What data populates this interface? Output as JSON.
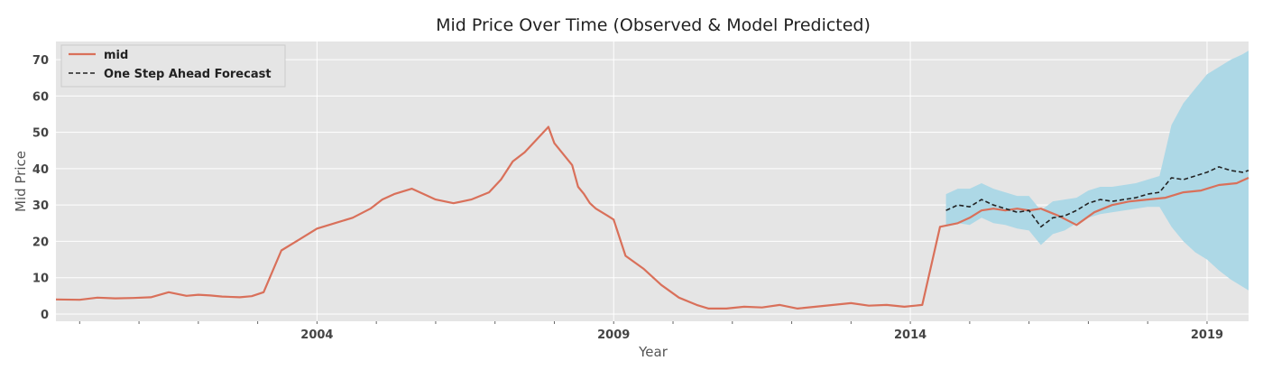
{
  "chart_data": {
    "type": "line",
    "title": "Mid Price Over Time (Observed & Model Predicted)",
    "xlabel": "Year",
    "ylabel": "Mid Price",
    "xlim": [
      1999.6,
      2019.7
    ],
    "ylim": [
      -2,
      75
    ],
    "grid": true,
    "legend_position": "top-left",
    "x_ticks": [
      2004,
      2009,
      2014,
      2019
    ],
    "y_ticks": [
      0,
      10,
      20,
      30,
      40,
      50,
      60,
      70
    ],
    "series": [
      {
        "name": "mid",
        "style": "solid",
        "color": "#d9705a",
        "x": [
          1999.6,
          2000.0,
          2000.3,
          2000.6,
          2000.9,
          2001.2,
          2001.5,
          2001.8,
          2002.0,
          2002.2,
          2002.4,
          2002.7,
          2002.9,
          2003.1,
          2003.4,
          2003.7,
          2004.0,
          2004.3,
          2004.6,
          2004.9,
          2005.1,
          2005.3,
          2005.6,
          2005.8,
          2006.0,
          2006.3,
          2006.6,
          2006.9,
          2007.1,
          2007.3,
          2007.5,
          2007.7,
          2007.9,
          2008.0,
          2008.1,
          2008.2,
          2008.3,
          2008.4,
          2008.5,
          2008.6,
          2008.7,
          2008.8,
          2008.9,
          2009.0,
          2009.2,
          2009.5,
          2009.8,
          2010.1,
          2010.4,
          2010.6,
          2010.9,
          2011.2,
          2011.5,
          2011.8,
          2012.1,
          2012.4,
          2012.7,
          2013.0,
          2013.3,
          2013.6,
          2013.9,
          2014.2,
          2014.5,
          2014.8,
          2015.0,
          2015.2,
          2015.4,
          2015.6,
          2015.8,
          2016.0,
          2016.2,
          2016.5,
          2016.8,
          2017.1,
          2017.4,
          2017.7,
          2018.0,
          2018.3,
          2018.6,
          2018.9,
          2019.2,
          2019.5,
          2019.7
        ],
        "y": [
          4.0,
          3.9,
          4.5,
          4.3,
          4.4,
          4.6,
          6.0,
          5.0,
          5.3,
          5.1,
          4.8,
          4.6,
          4.9,
          6.0,
          17.5,
          20.5,
          23.5,
          25.0,
          26.5,
          29.0,
          31.5,
          33.0,
          34.5,
          33.0,
          31.5,
          30.5,
          31.5,
          33.5,
          37.0,
          42.0,
          44.5,
          48.0,
          51.5,
          47.0,
          45.0,
          43.0,
          41.0,
          35.0,
          33.0,
          30.5,
          29.0,
          28.0,
          27.0,
          26.0,
          16.0,
          12.5,
          8.0,
          4.5,
          2.5,
          1.5,
          1.5,
          2.0,
          1.8,
          2.5,
          1.5,
          2.0,
          2.5,
          3.0,
          2.3,
          2.5,
          2.0,
          2.5,
          24.0,
          25.0,
          26.5,
          28.5,
          29.0,
          28.5,
          29.0,
          28.5,
          29.0,
          27.0,
          24.5,
          28.0,
          30.0,
          31.0,
          31.5,
          32.0,
          33.5,
          34.0,
          35.5,
          36.0,
          37.5
        ]
      },
      {
        "name": "One Step Ahead Forecast",
        "style": "dashed",
        "color": "#222222",
        "x": [
          2014.6,
          2014.8,
          2015.0,
          2015.2,
          2015.4,
          2015.6,
          2015.8,
          2016.0,
          2016.2,
          2016.4,
          2016.6,
          2016.8,
          2017.0,
          2017.2,
          2017.4,
          2017.6,
          2017.8,
          2018.0,
          2018.2,
          2018.4,
          2018.6,
          2018.8,
          2019.0,
          2019.2,
          2019.4,
          2019.6,
          2019.7
        ],
        "y": [
          28.5,
          30.0,
          29.5,
          31.5,
          30.0,
          29.0,
          28.0,
          28.5,
          24.0,
          26.5,
          27.0,
          28.5,
          30.5,
          31.5,
          31.0,
          31.5,
          32.0,
          33.0,
          33.5,
          37.5,
          37.0,
          38.0,
          39.0,
          40.5,
          39.5,
          39.0,
          39.5
        ]
      }
    ],
    "confidence_band": {
      "color": "#add8e6",
      "x": [
        2014.6,
        2014.8,
        2015.0,
        2015.2,
        2015.4,
        2015.6,
        2015.8,
        2016.0,
        2016.2,
        2016.4,
        2016.6,
        2016.8,
        2017.0,
        2017.2,
        2017.4,
        2017.6,
        2017.8,
        2018.0,
        2018.2,
        2018.4,
        2018.6,
        2018.8,
        2019.0,
        2019.2,
        2019.4,
        2019.6,
        2019.7
      ],
      "lower": [
        24.0,
        25.0,
        24.5,
        26.5,
        25.0,
        24.5,
        23.5,
        23.0,
        19.0,
        22.0,
        23.0,
        25.0,
        26.5,
        27.5,
        28.0,
        28.5,
        29.0,
        29.5,
        29.5,
        24.0,
        20.0,
        17.0,
        15.0,
        12.0,
        9.5,
        7.5,
        6.5
      ],
      "upper": [
        33.0,
        34.5,
        34.5,
        36.0,
        34.5,
        33.5,
        32.5,
        32.5,
        28.5,
        31.0,
        31.5,
        32.0,
        34.0,
        35.0,
        35.0,
        35.5,
        36.0,
        37.0,
        38.0,
        52.0,
        58.0,
        62.0,
        66.0,
        68.0,
        70.0,
        71.5,
        72.5
      ]
    }
  }
}
